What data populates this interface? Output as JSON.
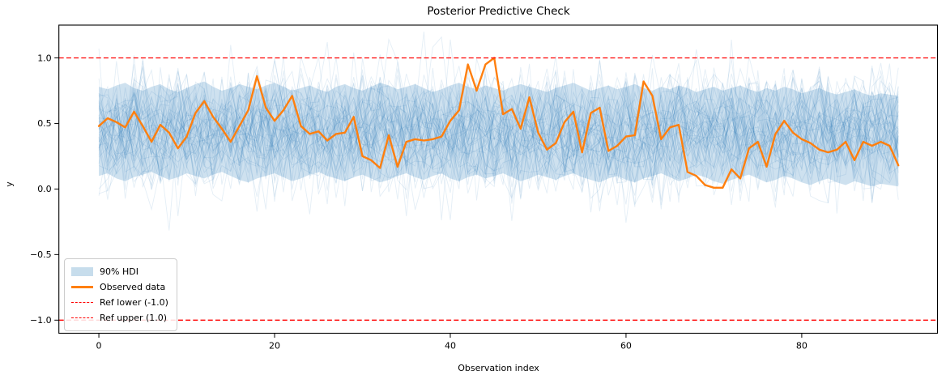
{
  "figure": {
    "title": "Posterior Predictive Check",
    "xlabel": "Observation index",
    "ylabel": "y"
  },
  "colors": {
    "observed_orange": "#ff7f0e",
    "posterior_blue": "#1f77b4",
    "ref_red": "#ff0000",
    "hdi_fill_alpha": 0.22,
    "sample_alpha": 0.12,
    "spine_black": "#000000",
    "legend_border": "#cccccc"
  },
  "legend": {
    "items": [
      {
        "label": "90% HDI",
        "swatch": "patch"
      },
      {
        "label": "Observed data",
        "swatch": "line"
      },
      {
        "label": "Ref lower (-1.0)",
        "swatch": "dash"
      },
      {
        "label": "Ref upper (1.0)",
        "swatch": "dash"
      }
    ]
  },
  "chart_data": {
    "type": "line",
    "title": "Posterior Predictive Check",
    "xlabel": "Observation index",
    "ylabel": "y",
    "x_start": 0,
    "x_step": 1,
    "n_points": 92,
    "xlim": [
      -4.55,
      95.45
    ],
    "ylim": [
      -1.1,
      1.25
    ],
    "x_ticks": [
      0,
      20,
      40,
      60,
      80
    ],
    "x_tick_labels": [
      "0",
      "20",
      "40",
      "60",
      "80"
    ],
    "y_ticks": [
      1.0,
      0.5,
      0.0,
      -0.5,
      -1.0
    ],
    "y_tick_labels": [
      "1.0",
      "0.5",
      "0.0",
      "−0.5",
      "−1.0"
    ],
    "grid": false,
    "legend_position": "lower left",
    "ref_lower": -1.0,
    "ref_upper": 1.0,
    "series": [
      {
        "name": "Observed data",
        "values": [
          0.48,
          0.54,
          0.51,
          0.47,
          0.59,
          0.48,
          0.36,
          0.49,
          0.43,
          0.31,
          0.4,
          0.58,
          0.67,
          0.55,
          0.46,
          0.36,
          0.48,
          0.6,
          0.86,
          0.62,
          0.52,
          0.6,
          0.71,
          0.48,
          0.42,
          0.44,
          0.37,
          0.42,
          0.43,
          0.55,
          0.25,
          0.22,
          0.16,
          0.41,
          0.17,
          0.36,
          0.38,
          0.37,
          0.38,
          0.4,
          0.52,
          0.6,
          0.95,
          0.75,
          0.95,
          1.0,
          0.57,
          0.61,
          0.46,
          0.7,
          0.43,
          0.3,
          0.35,
          0.51,
          0.59,
          0.28,
          0.58,
          0.62,
          0.29,
          0.33,
          0.4,
          0.41,
          0.82,
          0.71,
          0.38,
          0.47,
          0.49,
          0.13,
          0.1,
          0.03,
          0.01,
          0.01,
          0.15,
          0.08,
          0.31,
          0.36,
          0.17,
          0.42,
          0.52,
          0.43,
          0.38,
          0.35,
          0.3,
          0.28,
          0.3,
          0.36,
          0.22,
          0.36,
          0.33,
          0.36,
          0.33,
          0.18
        ]
      }
    ],
    "hdi_band": {
      "name": "90% HDI",
      "upper": [
        0.78,
        0.76,
        0.79,
        0.81,
        0.77,
        0.75,
        0.78,
        0.8,
        0.76,
        0.74,
        0.77,
        0.8,
        0.82,
        0.78,
        0.75,
        0.77,
        0.8,
        0.78,
        0.76,
        0.79,
        0.81,
        0.78,
        0.75,
        0.77,
        0.79,
        0.76,
        0.74,
        0.78,
        0.8,
        0.77,
        0.75,
        0.78,
        0.81,
        0.79,
        0.76,
        0.78,
        0.8,
        0.77,
        0.74,
        0.76,
        0.79,
        0.81,
        0.78,
        0.76,
        0.79,
        0.77,
        0.75,
        0.78,
        0.8,
        0.78,
        0.76,
        0.74,
        0.77,
        0.79,
        0.81,
        0.78,
        0.75,
        0.77,
        0.79,
        0.76,
        0.78,
        0.8,
        0.77,
        0.75,
        0.78,
        0.76,
        0.79,
        0.77,
        0.74,
        0.76,
        0.78,
        0.75,
        0.77,
        0.79,
        0.76,
        0.74,
        0.77,
        0.75,
        0.78,
        0.76,
        0.73,
        0.75,
        0.77,
        0.74,
        0.72,
        0.74,
        0.76,
        0.73,
        0.71,
        0.73,
        0.72,
        0.71
      ],
      "lower": [
        0.1,
        0.12,
        0.08,
        0.06,
        0.09,
        0.11,
        0.13,
        0.1,
        0.07,
        0.09,
        0.12,
        0.1,
        0.08,
        0.11,
        0.13,
        0.1,
        0.07,
        0.05,
        0.08,
        0.1,
        0.12,
        0.09,
        0.06,
        0.08,
        0.11,
        0.13,
        0.1,
        0.08,
        0.06,
        0.09,
        0.11,
        0.08,
        0.05,
        0.07,
        0.1,
        0.12,
        0.09,
        0.07,
        0.1,
        0.12,
        0.08,
        0.06,
        0.09,
        0.11,
        0.08,
        0.1,
        0.12,
        0.09,
        0.06,
        0.08,
        0.11,
        0.09,
        0.07,
        0.1,
        0.12,
        0.09,
        0.07,
        0.05,
        0.08,
        0.1,
        0.07,
        0.05,
        0.08,
        0.1,
        0.12,
        0.09,
        0.06,
        0.08,
        0.11,
        0.09,
        0.06,
        0.04,
        0.07,
        0.09,
        0.11,
        0.08,
        0.05,
        0.07,
        0.1,
        0.08,
        0.05,
        0.03,
        0.06,
        0.08,
        0.05,
        0.03,
        0.06,
        0.04,
        0.02,
        0.04,
        0.03,
        0.02
      ]
    },
    "posterior_samples": {
      "count": 50,
      "seed": 42,
      "mean": 0.43,
      "sigma": 0.21,
      "line_offset_sigma": 0.06,
      "clip": [
        -1.05,
        1.2
      ]
    }
  }
}
